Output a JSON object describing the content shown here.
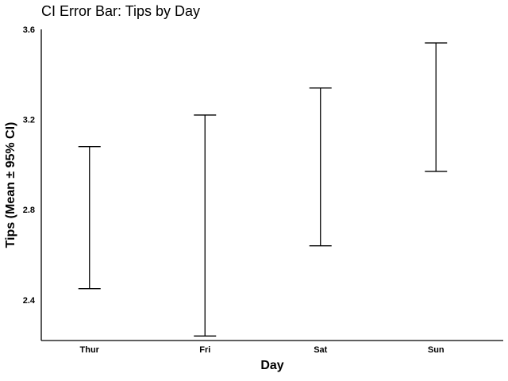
{
  "chart_data": {
    "type": "errorbar",
    "title": "CI Error Bar: Tips by Day",
    "xlabel": "Day",
    "ylabel": "Tips (Mean ± 95% CI)",
    "categories": [
      "Thur",
      "Fri",
      "Sat",
      "Sun"
    ],
    "ci_low": [
      2.45,
      2.24,
      2.64,
      2.97
    ],
    "ci_high": [
      3.08,
      3.22,
      3.34,
      3.54
    ],
    "ylim": [
      2.22,
      3.6
    ],
    "yticks": [
      2.4,
      2.8,
      3.2,
      3.6
    ],
    "ytick_labels": [
      "2.4",
      "2.8",
      "3.2",
      "3.6"
    ],
    "grid": false,
    "colors": {
      "bars": "#000000",
      "axes": "#000000",
      "background": "#ffffff"
    }
  }
}
